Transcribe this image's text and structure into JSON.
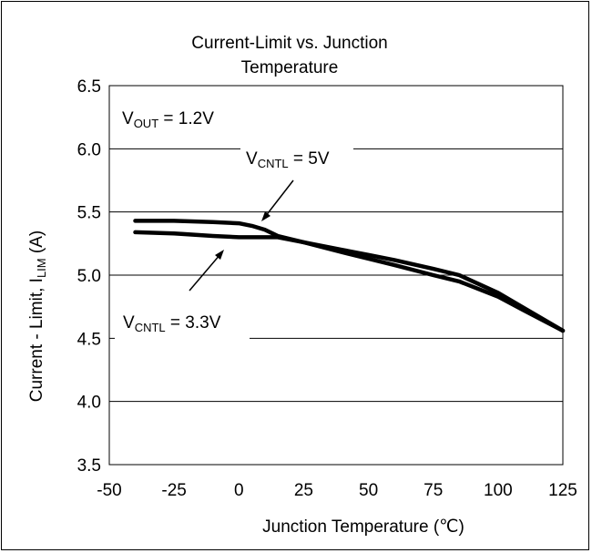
{
  "chart_data": {
    "type": "line",
    "title_line1": "Current-Limit vs. Junction",
    "title_line2": "Temperature",
    "xlabel": "Junction Temperature (℃)",
    "ylabel_main": "Current - Limit, I",
    "ylabel_sub": "LIM",
    "ylabel_unit": " (A)",
    "xlim": [
      -50,
      125
    ],
    "ylim": [
      3.5,
      6.5
    ],
    "x_ticks": [
      -50,
      -25,
      0,
      25,
      50,
      75,
      100,
      125
    ],
    "x_tick_labels": [
      "-50",
      "-25",
      "0",
      "25",
      "50",
      "75",
      "100",
      "125"
    ],
    "y_ticks": [
      3.5,
      4.0,
      4.5,
      5.0,
      5.5,
      6.0,
      6.5
    ],
    "y_tick_labels": [
      "3.5",
      "4.0",
      "4.5",
      "5.0",
      "5.5",
      "6.0",
      "6.5"
    ],
    "grid": true,
    "series": [
      {
        "name": "VCNTL = 5V",
        "x": [
          -40,
          -25,
          -10,
          0,
          5,
          10,
          15,
          25,
          40,
          50,
          60,
          75,
          85,
          100,
          110,
          125
        ],
        "values": [
          5.43,
          5.43,
          5.42,
          5.41,
          5.39,
          5.36,
          5.31,
          5.26,
          5.18,
          5.13,
          5.08,
          5.0,
          4.95,
          4.83,
          4.72,
          4.56
        ]
      },
      {
        "name": "VCNTL = 3.3V",
        "x": [
          -40,
          -25,
          -10,
          0,
          10,
          15,
          25,
          40,
          50,
          60,
          75,
          85,
          100,
          110,
          125
        ],
        "values": [
          5.34,
          5.33,
          5.31,
          5.3,
          5.3,
          5.3,
          5.26,
          5.2,
          5.16,
          5.12,
          5.05,
          5.0,
          4.86,
          4.74,
          4.56
        ]
      }
    ],
    "annotations": {
      "vout": {
        "main": "V",
        "sub": "OUT",
        "rest": " = 1.2V"
      },
      "vcntl_5": {
        "main": "V",
        "sub": "CNTL",
        "rest": " = 5V"
      },
      "vcntl_33": {
        "main": "V",
        "sub": "CNTL",
        "rest": " = 3.3V"
      }
    }
  }
}
